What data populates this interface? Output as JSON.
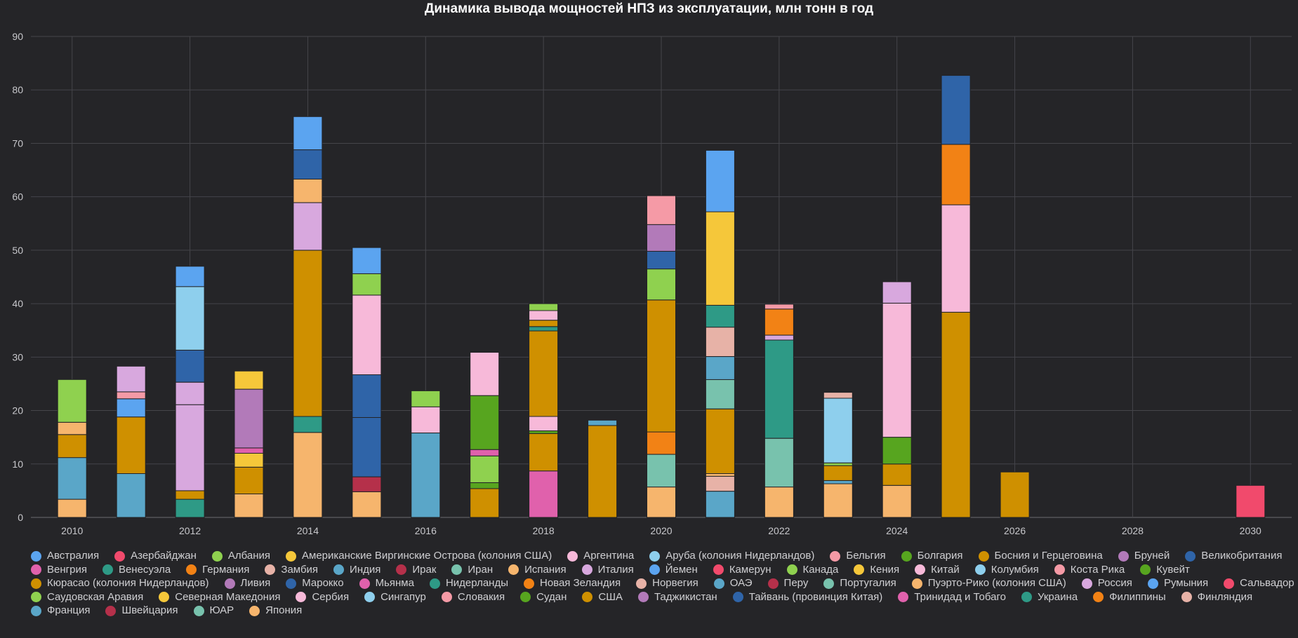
{
  "chart_data": {
    "type": "bar",
    "stacked": true,
    "title": "Динамика вывода мощностей НПЗ из эксплуатации, млн тонн в год",
    "xlabel": "",
    "ylabel": "",
    "ylim": [
      0,
      90
    ],
    "y_ticks": [
      0,
      10,
      20,
      30,
      40,
      50,
      60,
      70,
      80,
      90
    ],
    "xlim": [
      2009.3,
      2030.7
    ],
    "x_ticks": [
      2010,
      2012,
      2014,
      2016,
      2018,
      2020,
      2022,
      2024,
      2026,
      2028,
      2030
    ],
    "grid": true,
    "legend_position": "bottom",
    "countries": [
      {
        "name": "Австралия",
        "color": "#5ba4f0"
      },
      {
        "name": "Азербайджан",
        "color": "#f14a6c"
      },
      {
        "name": "Албания",
        "color": "#8fd14f"
      },
      {
        "name": "Американские Виргинские Острова (колония США)",
        "color": "#f5c73a"
      },
      {
        "name": "Аргентина",
        "color": "#f7b9d9"
      },
      {
        "name": "Аруба (колония Нидерландов)",
        "color": "#8ecfed"
      },
      {
        "name": "Бельгия",
        "color": "#f59aa6"
      },
      {
        "name": "Болгария",
        "color": "#57a51f"
      },
      {
        "name": "Босния и Герцеговина",
        "color": "#cf9000"
      },
      {
        "name": "Бруней",
        "color": "#b27ab9"
      },
      {
        "name": "Великобритания",
        "color": "#2f64a8"
      },
      {
        "name": "Венгрия",
        "color": "#e061ac"
      },
      {
        "name": "Венесуэла",
        "color": "#2e9a86"
      },
      {
        "name": "Германия",
        "color": "#f28215"
      },
      {
        "name": "Замбия",
        "color": "#e7b2a7"
      },
      {
        "name": "Индия",
        "color": "#5aa6c8"
      },
      {
        "name": "Ирак",
        "color": "#b5304a"
      },
      {
        "name": "Иран",
        "color": "#78c2ad"
      },
      {
        "name": "Испания",
        "color": "#f6b56d"
      },
      {
        "name": "Италия",
        "color": "#d8a8de"
      },
      {
        "name": "Йемен",
        "color": "#5ba4f0"
      },
      {
        "name": "Камерун",
        "color": "#f14a6c"
      },
      {
        "name": "Канада",
        "color": "#8fd14f"
      },
      {
        "name": "Кения",
        "color": "#f5c73a"
      },
      {
        "name": "Китай",
        "color": "#f7b9d9"
      },
      {
        "name": "Колумбия",
        "color": "#8ecfed"
      },
      {
        "name": "Коста Рика",
        "color": "#f59aa6"
      },
      {
        "name": "Кувейт",
        "color": "#57a51f"
      },
      {
        "name": "Кюрасао (колония Нидерландов)",
        "color": "#cf9000"
      },
      {
        "name": "Ливия",
        "color": "#b27ab9"
      },
      {
        "name": "Марокко",
        "color": "#2f64a8"
      },
      {
        "name": "Мьянма",
        "color": "#e061ac"
      },
      {
        "name": "Нидерланды",
        "color": "#2e9a86"
      },
      {
        "name": "Новая Зеландия",
        "color": "#f28215"
      },
      {
        "name": "Норвегия",
        "color": "#e7b2a7"
      },
      {
        "name": "ОАЭ",
        "color": "#5aa6c8"
      },
      {
        "name": "Перу",
        "color": "#b5304a"
      },
      {
        "name": "Португалия",
        "color": "#78c2ad"
      },
      {
        "name": "Пуэрто-Рико (колония США)",
        "color": "#f6b56d"
      },
      {
        "name": "Россия",
        "color": "#d8a8de"
      },
      {
        "name": "Румыния",
        "color": "#5ba4f0"
      },
      {
        "name": "Сальвадор",
        "color": "#f14a6c"
      },
      {
        "name": "Саудовская Аравия",
        "color": "#8fd14f"
      },
      {
        "name": "Северная Македония",
        "color": "#f5c73a"
      },
      {
        "name": "Сербия",
        "color": "#f7b9d9"
      },
      {
        "name": "Сингапур",
        "color": "#8ecfed"
      },
      {
        "name": "Словакия",
        "color": "#f59aa6"
      },
      {
        "name": "Судан",
        "color": "#57a51f"
      },
      {
        "name": "США",
        "color": "#cf9000"
      },
      {
        "name": "Таджикистан",
        "color": "#b27ab9"
      },
      {
        "name": "Тайвань (провинция Китая)",
        "color": "#2f64a8"
      },
      {
        "name": "Тринидад и Тобаго",
        "color": "#e061ac"
      },
      {
        "name": "Украина",
        "color": "#2e9a86"
      },
      {
        "name": "Филиппины",
        "color": "#f28215"
      },
      {
        "name": "Финляндия",
        "color": "#e7b2a7"
      },
      {
        "name": "Франция",
        "color": "#5aa6c8"
      },
      {
        "name": "Швейцария",
        "color": "#b5304a"
      },
      {
        "name": "ЮАР",
        "color": "#78c2ad"
      },
      {
        "name": "Япония",
        "color": "#f6b56d"
      }
    ],
    "stacks": [
      {
        "year": 2010,
        "segments": [
          {
            "country": "Япония",
            "value": 3.4
          },
          {
            "country": "Франция",
            "value": 7.8
          },
          {
            "country": "США",
            "value": 4.3
          },
          {
            "country": "Испания",
            "value": 2.3
          },
          {
            "country": "Канада",
            "value": 8.0
          }
        ]
      },
      {
        "year": 2011,
        "segments": [
          {
            "country": "Франция",
            "value": 8.2
          },
          {
            "country": "США",
            "value": 10.6
          },
          {
            "country": "Австралия",
            "value": 3.4
          },
          {
            "country": "Бельгия",
            "value": 1.3
          },
          {
            "country": "Италия",
            "value": 4.8
          }
        ]
      },
      {
        "year": 2012,
        "segments": [
          {
            "country": "Украина",
            "value": 3.4
          },
          {
            "country": "США",
            "value": 1.6
          },
          {
            "country": "Россия",
            "value": 16.1
          },
          {
            "country": "Италия",
            "value": 4.2
          },
          {
            "country": "Великобритания",
            "value": 6.0
          },
          {
            "country": "Колумбия",
            "value": 11.9
          },
          {
            "country": "Австралия",
            "value": 3.8
          }
        ]
      },
      {
        "year": 2013,
        "segments": [
          {
            "country": "Япония",
            "value": 4.4
          },
          {
            "country": "США",
            "value": 5.0
          },
          {
            "country": "Американские Виргинские Острова (колония США)",
            "value": 2.6
          },
          {
            "country": "Венгрия",
            "value": 1.0
          },
          {
            "country": "Бруней",
            "value": 11.0
          },
          {
            "country": "Кения",
            "value": 3.4
          }
        ]
      },
      {
        "year": 2014,
        "segments": [
          {
            "country": "Япония",
            "value": 15.9
          },
          {
            "country": "Украина",
            "value": 3.0
          },
          {
            "country": "США",
            "value": 31.1
          },
          {
            "country": "Италия",
            "value": 8.9
          },
          {
            "country": "Испания",
            "value": 4.4
          },
          {
            "country": "Великобритания",
            "value": 5.5
          },
          {
            "country": "Австралия",
            "value": 6.2
          }
        ]
      },
      {
        "year": 2015,
        "segments": [
          {
            "country": "Япония",
            "value": 4.8
          },
          {
            "country": "Ирак",
            "value": 2.8
          },
          {
            "country": "Великобритания",
            "value": 11.1
          },
          {
            "country": "Тайвань (провинция Китая)",
            "value": 8.0
          },
          {
            "country": "Китай",
            "value": 14.9
          },
          {
            "country": "Канада",
            "value": 4.0
          },
          {
            "country": "Австралия",
            "value": 4.9
          }
        ]
      },
      {
        "year": 2016,
        "segments": [
          {
            "country": "Франция",
            "value": 15.8
          },
          {
            "country": "Аргентина",
            "value": 4.9
          },
          {
            "country": "Албания",
            "value": 3.0
          }
        ]
      },
      {
        "year": 2017,
        "segments": [
          {
            "country": "США",
            "value": 5.4
          },
          {
            "country": "Кувейт",
            "value": 1.1
          },
          {
            "country": "Канада",
            "value": 5.0
          },
          {
            "country": "Венгрия",
            "value": 1.2
          },
          {
            "country": "Болгария",
            "value": 10.1
          },
          {
            "country": "Китай",
            "value": 8.1
          }
        ]
      },
      {
        "year": 2018,
        "segments": [
          {
            "country": "Тринидад и Тобаго",
            "value": 8.7
          },
          {
            "country": "США",
            "value": 7.0
          },
          {
            "country": "Кувейт",
            "value": 0.5
          },
          {
            "country": "Китай",
            "value": 2.7
          },
          {
            "country": "Кюрасао (колония Нидерландов)",
            "value": 16.0
          },
          {
            "country": "Нидерланды",
            "value": 0.8
          },
          {
            "country": "Босния и Герцеговина",
            "value": 1.2
          },
          {
            "country": "Сербия",
            "value": 1.8
          },
          {
            "country": "Саудовская Аравия",
            "value": 1.3
          }
        ]
      },
      {
        "year": 2019,
        "segments": [
          {
            "country": "США",
            "value": 17.2
          },
          {
            "country": "ОАЭ",
            "value": 1.0
          }
        ]
      },
      {
        "year": 2020,
        "segments": [
          {
            "country": "Япония",
            "value": 5.7
          },
          {
            "country": "ЮАР",
            "value": 6.1
          },
          {
            "country": "Германия",
            "value": 4.2
          },
          {
            "country": "США",
            "value": 24.7
          },
          {
            "country": "Саудовская Аравия",
            "value": 5.8
          },
          {
            "country": "Великобритания",
            "value": 3.3
          },
          {
            "country": "Бруней",
            "value": 5.0
          },
          {
            "country": "Бельгия",
            "value": 5.4
          }
        ]
      },
      {
        "year": 2021,
        "segments": [
          {
            "country": "Франция",
            "value": 4.9
          },
          {
            "country": "Замбия",
            "value": 2.8
          },
          {
            "country": "Испания",
            "value": 0.5
          },
          {
            "country": "США",
            "value": 12.1
          },
          {
            "country": "Иран",
            "value": 5.5
          },
          {
            "country": "Индия",
            "value": 4.3
          },
          {
            "country": "Финляндия",
            "value": 5.5
          },
          {
            "country": "Венесуэла",
            "value": 4.1
          },
          {
            "country": "Северная Македония",
            "value": 17.5
          },
          {
            "country": "Австралия",
            "value": 11.5
          }
        ]
      },
      {
        "year": 2022,
        "segments": [
          {
            "country": "Япония",
            "value": 5.7
          },
          {
            "country": "Португалия",
            "value": 9.1
          },
          {
            "country": "Нидерланды",
            "value": 18.4
          },
          {
            "country": "Россия",
            "value": 0.9
          },
          {
            "country": "Филиппины",
            "value": 4.9
          },
          {
            "country": "Словакия",
            "value": 0.9
          }
        ]
      },
      {
        "year": 2023,
        "segments": [
          {
            "country": "Япония",
            "value": 6.3
          },
          {
            "country": "Франция",
            "value": 0.6
          },
          {
            "country": "США",
            "value": 2.8
          },
          {
            "country": "Саудовская Аравия",
            "value": 0.5
          },
          {
            "country": "Сингапур",
            "value": 12.1
          },
          {
            "country": "Финляндия",
            "value": 1.1
          }
        ]
      },
      {
        "year": 2024,
        "segments": [
          {
            "country": "Япония",
            "value": 6.0
          },
          {
            "country": "США",
            "value": 4.0
          },
          {
            "country": "Судан",
            "value": 5.0
          },
          {
            "country": "Китай",
            "value": 25.1
          },
          {
            "country": "Россия",
            "value": 4.0
          }
        ]
      },
      {
        "year": 2025,
        "segments": [
          {
            "country": "США",
            "value": 38.4
          },
          {
            "country": "Сербия",
            "value": 20.1
          },
          {
            "country": "Германия",
            "value": 11.3
          },
          {
            "country": "Марокко",
            "value": 12.9
          }
        ]
      },
      {
        "year": 2026,
        "segments": [
          {
            "country": "США",
            "value": 8.5
          }
        ]
      },
      {
        "year": 2030,
        "segments": [
          {
            "country": "Сальвадор",
            "value": 6.0
          }
        ]
      }
    ]
  }
}
